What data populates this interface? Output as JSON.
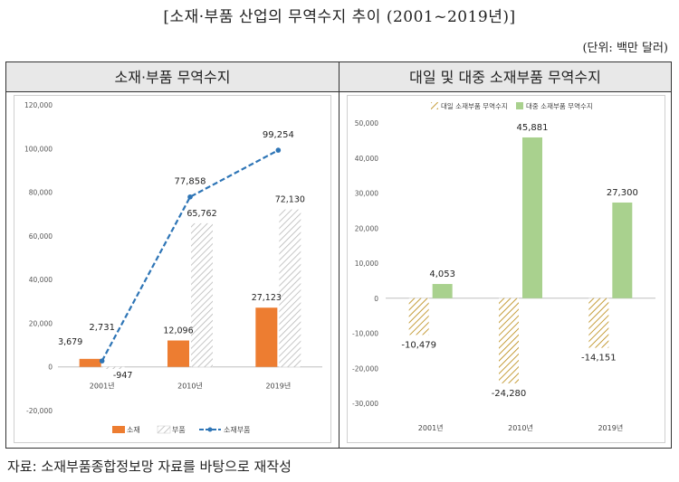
{
  "page": {
    "title": "[소재·부품 산업의 무역수지 추이 (2001~2019년)]",
    "unit": "(단위: 백만 달러)",
    "source": "자료: 소재부품종합정보망 자료를 바탕으로 재작성"
  },
  "panels": {
    "left_title": "소재·부품 무역수지",
    "right_title": "대일 및 대중 소재부품 무역수지"
  },
  "colors": {
    "orange": "#ED7D31",
    "green": "#A9D18E",
    "blue": "#2E75B6",
    "gray_hatch": "#bfbfbf",
    "brown_hatch": "#B8860B"
  },
  "chart_data": [
    {
      "type": "bar",
      "categories": [
        "2001년",
        "2010년",
        "2019년"
      ],
      "series": [
        {
          "name": "소재",
          "values": [
            3679,
            12096,
            27123
          ],
          "labels": [
            "3,679",
            "12,096",
            "27,123"
          ],
          "style": "solid-orange"
        },
        {
          "name": "부품",
          "values": [
            -947,
            65762,
            72130
          ],
          "labels": [
            "-947",
            "65,762",
            "72,130"
          ],
          "style": "hatch-gray"
        },
        {
          "name": "소재부품",
          "values": [
            2731,
            77858,
            99254
          ],
          "labels": [
            "2,731",
            "77,858",
            "99,254"
          ],
          "style": "dashed-line-blue"
        }
      ],
      "ylim": [
        -20000,
        120000
      ],
      "yticks": [
        -20000,
        0,
        20000,
        40000,
        60000,
        80000,
        100000,
        120000
      ],
      "ytick_labels": [
        "-20,000",
        "0",
        "20,000",
        "40,000",
        "60,000",
        "80,000",
        "100,000",
        "120,000"
      ],
      "legend_position": "bottom"
    },
    {
      "type": "bar",
      "categories": [
        "2001년",
        "2010년",
        "2019년"
      ],
      "series": [
        {
          "name": "대일 소재부품 무역수지",
          "values": [
            -10479,
            -24280,
            -14151
          ],
          "labels": [
            "-10,479",
            "-24,280",
            "-14,151"
          ],
          "style": "hatch-brown"
        },
        {
          "name": "대중 소재부품 무역수지",
          "values": [
            4053,
            45881,
            27300
          ],
          "labels": [
            "4,053",
            "45,881",
            "27,300"
          ],
          "style": "solid-green"
        }
      ],
      "ylim": [
        -30000,
        50000
      ],
      "yticks": [
        -30000,
        -20000,
        -10000,
        0,
        10000,
        20000,
        30000,
        40000,
        50000
      ],
      "ytick_labels": [
        "-30,000",
        "-20,000",
        "-10,000",
        "0",
        "10,000",
        "20,000",
        "30,000",
        "40,000",
        "50,000"
      ],
      "legend_position": "top-left"
    }
  ]
}
